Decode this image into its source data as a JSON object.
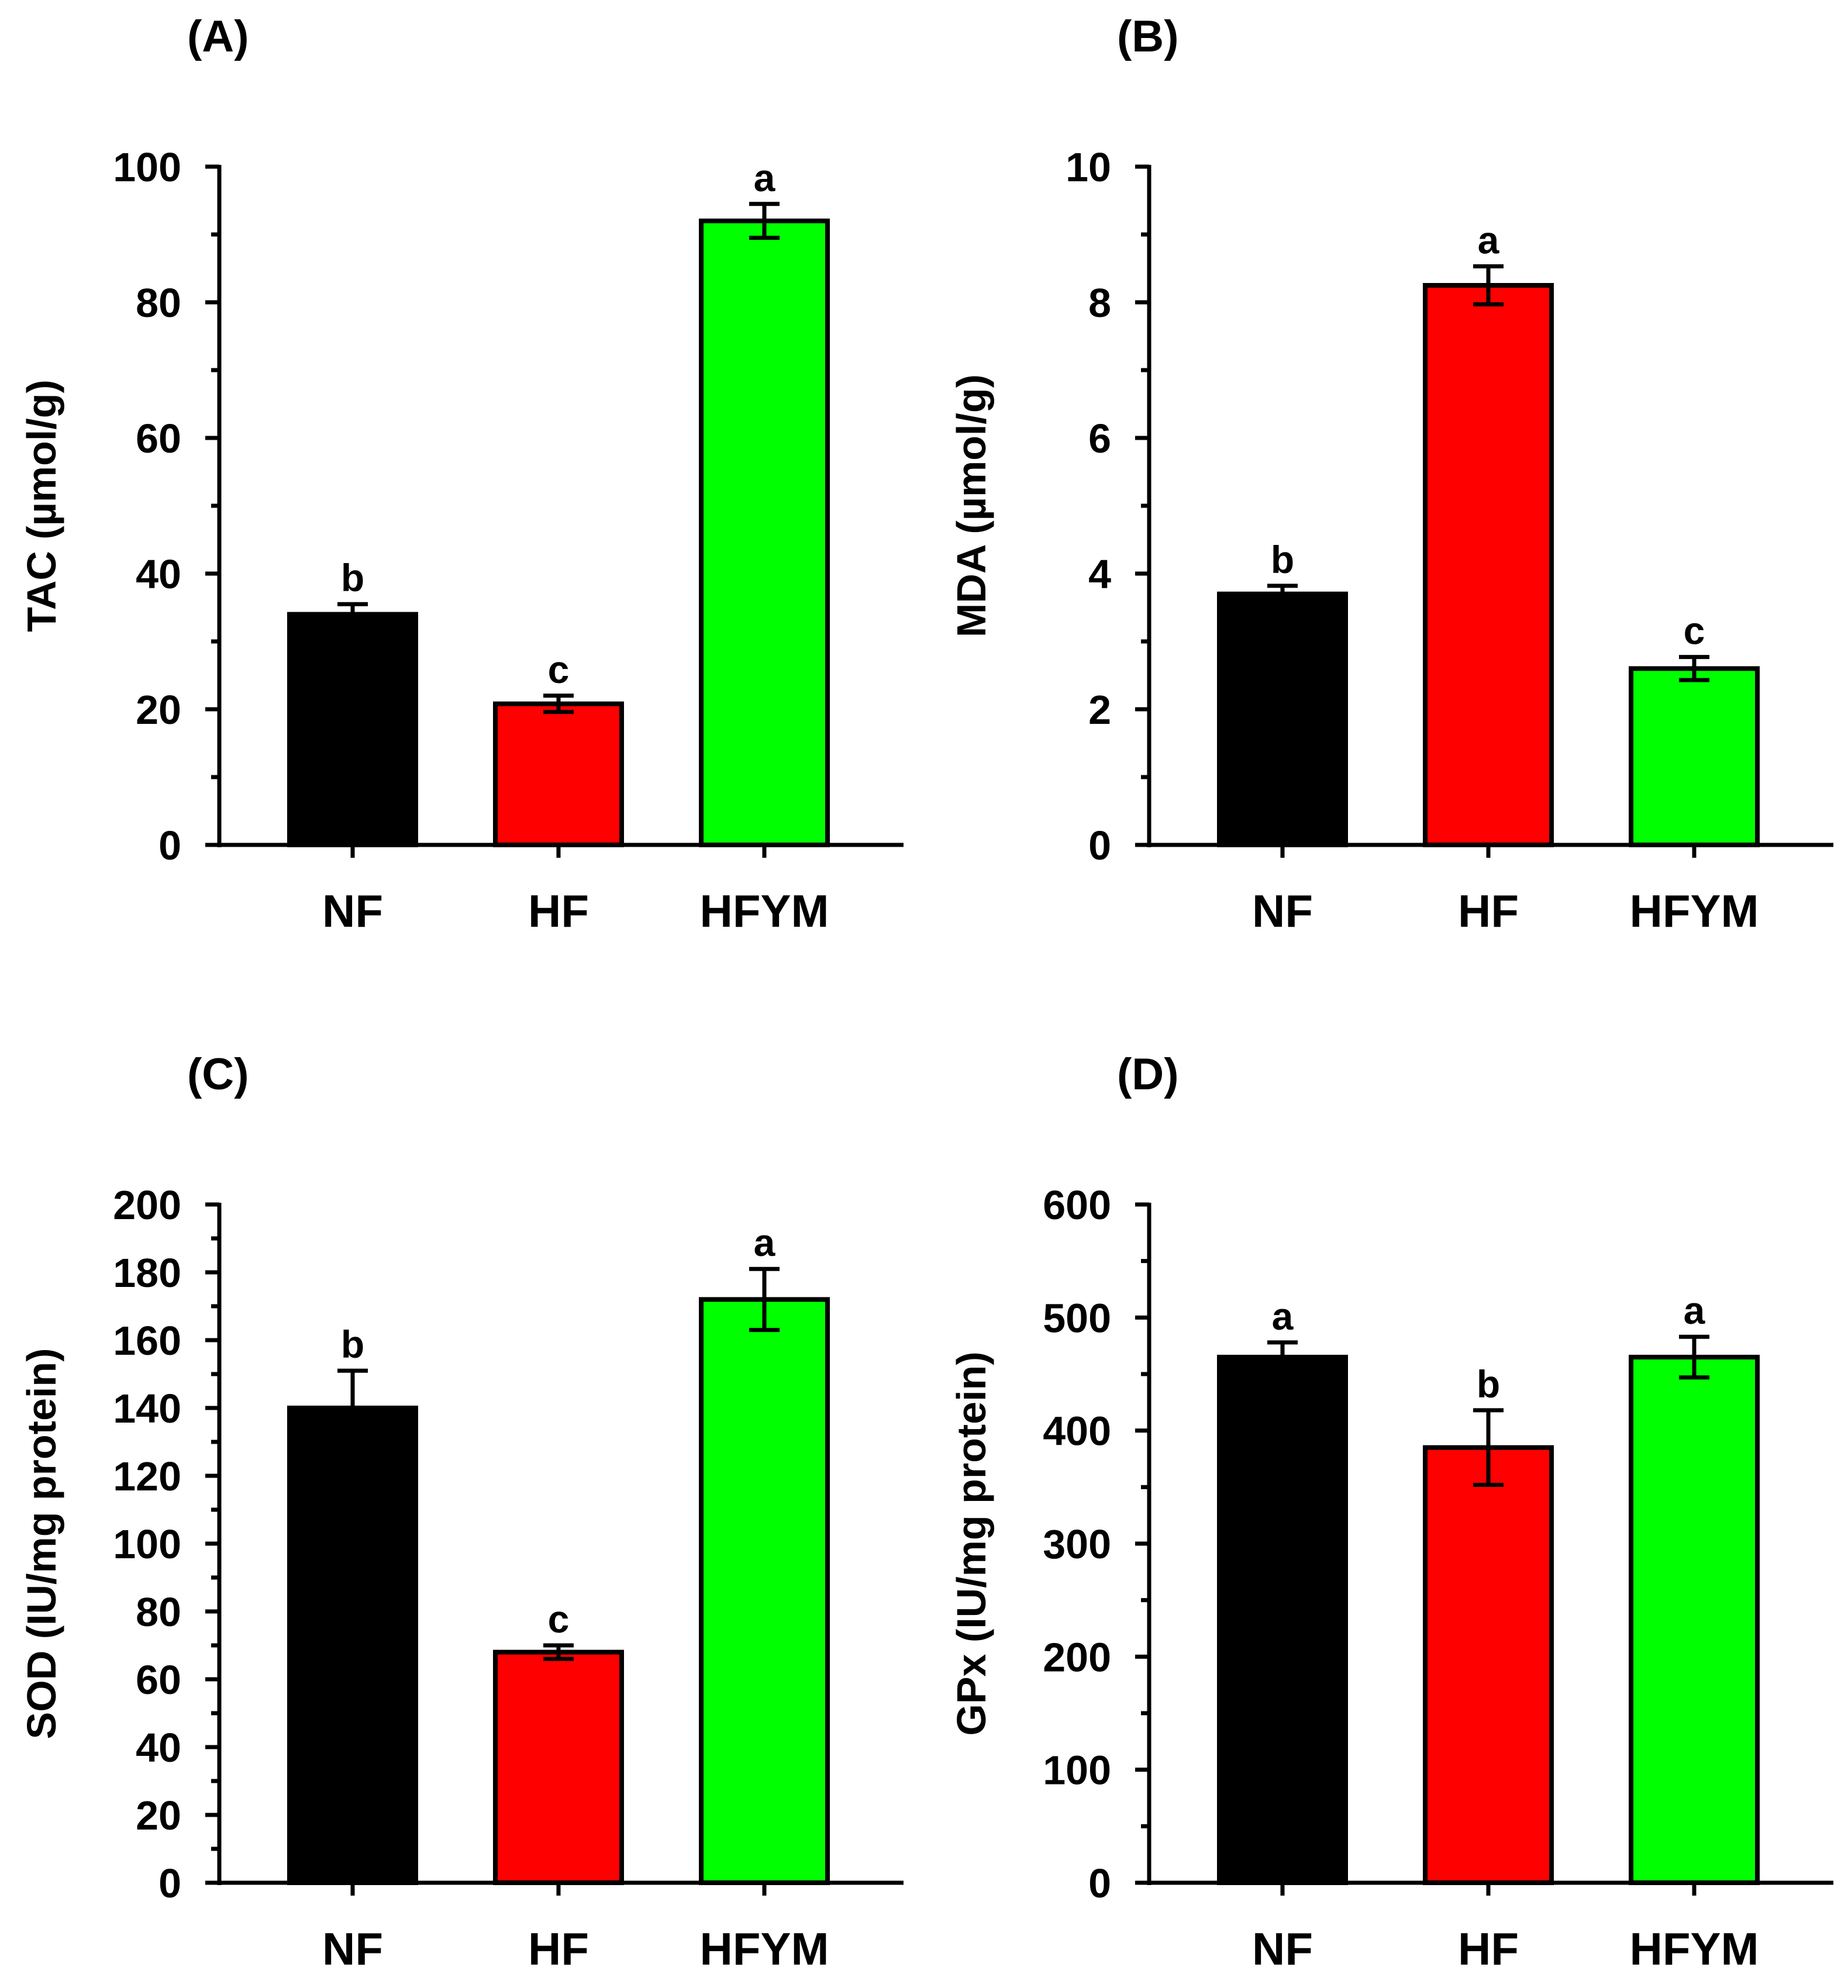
{
  "figure": {
    "colors": {
      "NF": "#000000",
      "HF": "#ff0000",
      "HFYM": "#00ff00",
      "axis": "#000000"
    }
  },
  "chart_data": [
    {
      "panel": "(A)",
      "type": "bar",
      "categories": [
        "NF",
        "HF",
        "HFYM"
      ],
      "values": [
        34,
        20.8,
        92
      ],
      "errors": [
        1.5,
        1.2,
        2.5
      ],
      "significance": [
        "b",
        "c",
        "a"
      ],
      "ylabel": "TAC (µmol/g)",
      "xlabel": "",
      "ylim": [
        0,
        100
      ],
      "yticks": [
        0,
        20,
        40,
        60,
        80,
        100
      ],
      "ytick_labels": [
        "0",
        "20",
        "40",
        "60",
        "80",
        "100"
      ],
      "grid": false
    },
    {
      "panel": "(B)",
      "type": "bar",
      "categories": [
        "NF",
        "HF",
        "HFYM"
      ],
      "values": [
        3.7,
        8.25,
        2.6
      ],
      "errors": [
        0.12,
        0.28,
        0.17
      ],
      "significance": [
        "b",
        "a",
        "c"
      ],
      "ylabel": "MDA (µmol/g)",
      "xlabel": "",
      "ylim": [
        0,
        10
      ],
      "yticks": [
        0,
        2,
        4,
        6,
        8,
        10
      ],
      "ytick_labels": [
        "0",
        "2",
        "4",
        "6",
        "8",
        "10"
      ],
      "grid": false
    },
    {
      "panel": "(C)",
      "type": "bar",
      "categories": [
        "NF",
        "HF",
        "HFYM"
      ],
      "values": [
        140,
        68,
        172
      ],
      "errors": [
        11,
        2,
        9
      ],
      "significance": [
        "b",
        "c",
        "a"
      ],
      "ylabel": "SOD (IU/mg protein)",
      "xlabel": "",
      "ylim": [
        0,
        200
      ],
      "yticks": [
        0,
        20,
        40,
        60,
        80,
        100,
        120,
        140,
        160,
        180,
        200
      ],
      "ytick_labels": [
        "0",
        "20",
        "40",
        "60",
        "80",
        "100",
        "120",
        "140",
        "160",
        "180",
        "200"
      ],
      "grid": false
    },
    {
      "panel": "(D)",
      "type": "bar",
      "categories": [
        "NF",
        "HF",
        "HFYM"
      ],
      "values": [
        465,
        385,
        465
      ],
      "errors": [
        13,
        33,
        18
      ],
      "significance": [
        "a",
        "b",
        "a"
      ],
      "ylabel": "GPx (IU/mg protein)",
      "xlabel": "",
      "ylim": [
        0,
        600
      ],
      "yticks": [
        0,
        100,
        200,
        300,
        400,
        500,
        600
      ],
      "ytick_labels": [
        "0",
        "100",
        "200",
        "300",
        "400",
        "500",
        "600"
      ],
      "grid": false
    }
  ]
}
